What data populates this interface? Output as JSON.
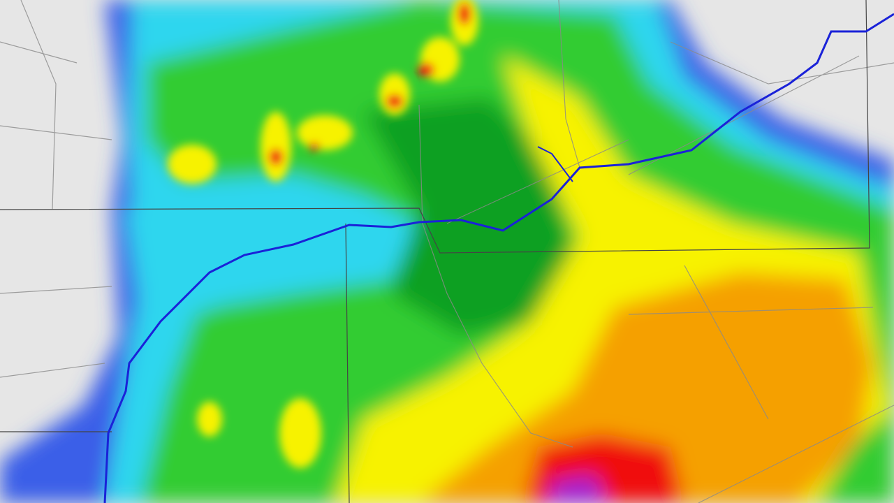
{
  "map": {
    "type": "weather-radar-precipitation",
    "colors": {
      "background": "#e6e6e6",
      "light_blue": "#5b7fe0",
      "blue": "#3a5ee8",
      "cyan": "#2fd6ee",
      "light_green": "#33cc33",
      "green": "#0aa020",
      "dark_green": "#078a18",
      "yellow": "#f7f200",
      "gold": "#f5c000",
      "orange": "#f5a000",
      "red_orange": "#f55a10",
      "red": "#f01010",
      "purple": "#a020d0",
      "river": "#1a22d8",
      "border": "#444444",
      "roads": "#8a8a8a"
    }
  }
}
